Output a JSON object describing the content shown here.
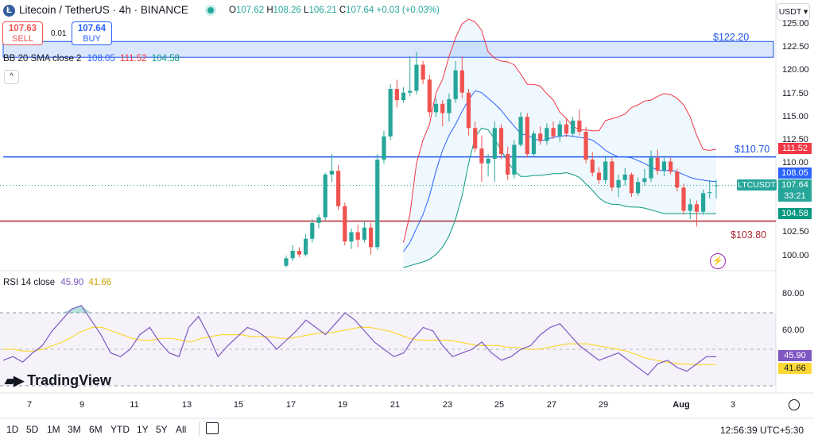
{
  "header": {
    "logo_letter": "Ł",
    "title": "Litecoin / TetherUS · 4h · BINANCE",
    "ohlc": {
      "open_key": "O",
      "open": "107.62",
      "high_key": "H",
      "high": "108.26",
      "low_key": "L",
      "low": "106.21",
      "close_key": "C",
      "close": "107.64",
      "change": "+0.03 (+0.03%)"
    },
    "currency_button": "USDT ▾"
  },
  "trade": {
    "sell_price": "107.63",
    "sell_label": "SELL",
    "spread": "0.01",
    "buy_price": "107.64",
    "buy_label": "BUY"
  },
  "indicators": {
    "bb": {
      "name": "BB 20 SMA close 2",
      "basis": "108.05",
      "upper": "111.52",
      "lower": "104.58"
    },
    "rsi": {
      "name": "RSI 14 close",
      "value": "45.90",
      "ma": "41.66"
    },
    "collapse_icon": "^"
  },
  "price_axis": {
    "ticks": [
      "125.00",
      "122.50",
      "120.00",
      "117.50",
      "115.00",
      "112.50",
      "110.00",
      "107.50",
      "105.00",
      "102.50",
      "100.00"
    ],
    "rsi_ticks": [
      "80.00",
      "60.00"
    ]
  },
  "badges": {
    "upper": "111.52",
    "basis": "108.05",
    "symbol_label": "LTCUSDT",
    "price": "107.64",
    "countdown": "33:21",
    "lower": "104.58",
    "rsi": "45.90",
    "rsi_ma": "41.66"
  },
  "levels": {
    "zone_top": "$122.20",
    "resistance": "$110.70",
    "support": "$103.80"
  },
  "time_axis": {
    "ticks": [
      "7",
      "9",
      "11",
      "13",
      "15",
      "17",
      "19",
      "21",
      "23",
      "25",
      "27",
      "29",
      "Aug",
      "3"
    ]
  },
  "timeframes": [
    "1D",
    "5D",
    "1M",
    "3M",
    "6M",
    "YTD",
    "1Y",
    "5Y",
    "All"
  ],
  "footer": {
    "clock": "12:56:39 UTC+5:30",
    "brand": "TradingView"
  },
  "colors": {
    "up": "#26a69a",
    "down": "#ef5350",
    "bb_basis": "#2962ff",
    "bb_upper": "#f23645",
    "bb_lower": "#089981",
    "rsi": "#7e57c2",
    "rsi_ma": "#fdd835",
    "resistance": "#1e53e5",
    "support": "#b22833"
  },
  "chart_data": {
    "type": "candlestick",
    "symbol": "LTCUSDT",
    "interval": "4h",
    "ylim": [
      98.5,
      126
    ],
    "candles": [
      {
        "o": 99.0,
        "h": 100.1,
        "l": 98.8,
        "c": 99.8
      },
      {
        "o": 99.8,
        "h": 101.2,
        "l": 99.5,
        "c": 100.6
      },
      {
        "o": 100.6,
        "h": 101.0,
        "l": 99.9,
        "c": 100.2
      },
      {
        "o": 100.2,
        "h": 102.4,
        "l": 100.0,
        "c": 101.9
      },
      {
        "o": 101.9,
        "h": 104.0,
        "l": 101.5,
        "c": 103.6
      },
      {
        "o": 103.6,
        "h": 104.5,
        "l": 103.0,
        "c": 104.2
      },
      {
        "o": 104.2,
        "h": 109.0,
        "l": 103.9,
        "c": 108.8
      },
      {
        "o": 108.8,
        "h": 111.0,
        "l": 108.0,
        "c": 109.2
      },
      {
        "o": 109.2,
        "h": 109.8,
        "l": 105.0,
        "c": 105.4
      },
      {
        "o": 105.4,
        "h": 105.8,
        "l": 101.2,
        "c": 101.6
      },
      {
        "o": 101.6,
        "h": 103.0,
        "l": 100.8,
        "c": 102.6
      },
      {
        "o": 102.6,
        "h": 103.4,
        "l": 101.0,
        "c": 101.8
      },
      {
        "o": 101.8,
        "h": 103.8,
        "l": 101.5,
        "c": 103.1
      },
      {
        "o": 103.1,
        "h": 103.6,
        "l": 100.2,
        "c": 101.0
      },
      {
        "o": 101.0,
        "h": 111.0,
        "l": 100.7,
        "c": 110.4
      },
      {
        "o": 110.4,
        "h": 113.5,
        "l": 110.0,
        "c": 112.9
      },
      {
        "o": 112.9,
        "h": 118.5,
        "l": 112.5,
        "c": 118.0
      },
      {
        "o": 118.0,
        "h": 119.0,
        "l": 116.0,
        "c": 116.8
      },
      {
        "o": 116.8,
        "h": 118.2,
        "l": 116.5,
        "c": 117.6
      },
      {
        "o": 117.6,
        "h": 121.5,
        "l": 117.2,
        "c": 117.8
      },
      {
        "o": 117.8,
        "h": 122.0,
        "l": 117.4,
        "c": 120.6
      },
      {
        "o": 120.6,
        "h": 121.0,
        "l": 118.5,
        "c": 119.0
      },
      {
        "o": 119.0,
        "h": 119.5,
        "l": 115.0,
        "c": 115.5
      },
      {
        "o": 115.5,
        "h": 117.0,
        "l": 115.0,
        "c": 116.4
      },
      {
        "o": 116.4,
        "h": 116.8,
        "l": 114.0,
        "c": 115.4
      },
      {
        "o": 115.4,
        "h": 117.5,
        "l": 114.5,
        "c": 116.9
      },
      {
        "o": 116.9,
        "h": 121.0,
        "l": 116.5,
        "c": 120.0
      },
      {
        "o": 120.0,
        "h": 121.5,
        "l": 117.0,
        "c": 117.6
      },
      {
        "o": 117.6,
        "h": 118.0,
        "l": 113.0,
        "c": 113.8
      },
      {
        "o": 113.8,
        "h": 114.5,
        "l": 111.2,
        "c": 111.6
      },
      {
        "o": 111.6,
        "h": 113.0,
        "l": 108.0,
        "c": 110.0
      },
      {
        "o": 110.0,
        "h": 111.0,
        "l": 108.6,
        "c": 110.5
      },
      {
        "o": 110.5,
        "h": 114.5,
        "l": 108.0,
        "c": 113.8
      },
      {
        "o": 113.8,
        "h": 114.2,
        "l": 110.5,
        "c": 111.0
      },
      {
        "o": 111.0,
        "h": 111.8,
        "l": 108.2,
        "c": 108.8
      },
      {
        "o": 108.8,
        "h": 112.5,
        "l": 108.4,
        "c": 112.0
      },
      {
        "o": 112.0,
        "h": 115.5,
        "l": 111.8,
        "c": 115.0
      },
      {
        "o": 115.0,
        "h": 115.4,
        "l": 110.6,
        "c": 111.0
      },
      {
        "o": 111.0,
        "h": 113.5,
        "l": 110.8,
        "c": 113.2
      },
      {
        "o": 113.2,
        "h": 114.0,
        "l": 112.0,
        "c": 112.4
      },
      {
        "o": 112.4,
        "h": 114.3,
        "l": 112.0,
        "c": 113.8
      },
      {
        "o": 113.8,
        "h": 114.5,
        "l": 112.6,
        "c": 112.9
      },
      {
        "o": 112.9,
        "h": 114.6,
        "l": 112.3,
        "c": 114.2
      },
      {
        "o": 114.2,
        "h": 114.8,
        "l": 112.8,
        "c": 113.2
      },
      {
        "o": 113.2,
        "h": 115.0,
        "l": 112.9,
        "c": 114.6
      },
      {
        "o": 114.6,
        "h": 115.8,
        "l": 113.0,
        "c": 113.4
      },
      {
        "o": 113.4,
        "h": 113.9,
        "l": 110.0,
        "c": 110.4
      },
      {
        "o": 110.4,
        "h": 111.2,
        "l": 108.6,
        "c": 109.0
      },
      {
        "o": 109.0,
        "h": 109.6,
        "l": 107.8,
        "c": 108.2
      },
      {
        "o": 108.2,
        "h": 110.8,
        "l": 107.8,
        "c": 110.2
      },
      {
        "o": 110.2,
        "h": 110.6,
        "l": 107.0,
        "c": 107.4
      },
      {
        "o": 107.4,
        "h": 108.8,
        "l": 106.4,
        "c": 108.2
      },
      {
        "o": 108.2,
        "h": 109.5,
        "l": 107.6,
        "c": 108.8
      },
      {
        "o": 108.8,
        "h": 109.0,
        "l": 106.4,
        "c": 106.8
      },
      {
        "o": 106.8,
        "h": 108.5,
        "l": 106.5,
        "c": 108.0
      },
      {
        "o": 108.0,
        "h": 109.4,
        "l": 107.6,
        "c": 108.4
      },
      {
        "o": 108.4,
        "h": 111.4,
        "l": 108.0,
        "c": 110.6
      },
      {
        "o": 110.6,
        "h": 111.5,
        "l": 108.8,
        "c": 109.2
      },
      {
        "o": 109.2,
        "h": 110.8,
        "l": 108.6,
        "c": 110.2
      },
      {
        "o": 110.2,
        "h": 110.6,
        "l": 108.8,
        "c": 109.1
      },
      {
        "o": 109.1,
        "h": 109.4,
        "l": 107.0,
        "c": 107.4
      },
      {
        "o": 107.4,
        "h": 107.8,
        "l": 104.5,
        "c": 104.9
      },
      {
        "o": 104.9,
        "h": 106.2,
        "l": 104.0,
        "c": 105.6
      },
      {
        "o": 105.6,
        "h": 106.0,
        "l": 103.2,
        "c": 104.8
      },
      {
        "o": 104.8,
        "h": 107.2,
        "l": 104.5,
        "c": 106.8
      },
      {
        "o": 106.8,
        "h": 108.2,
        "l": 106.2,
        "c": 106.9
      },
      {
        "o": 107.62,
        "h": 108.26,
        "l": 106.21,
        "c": 107.64
      }
    ],
    "bb": {
      "upper": [
        101.5,
        104.5,
        110.0,
        112.5,
        114.2,
        117.6,
        119.0,
        121.5,
        123.5,
        125.0,
        125.5,
        125.2,
        124.3,
        122.0,
        121.3,
        121.0,
        120.9,
        120.6,
        119.6,
        118.5,
        118.5,
        118.3,
        117.5,
        116.8,
        115.5,
        114.8,
        114.0,
        113.6,
        113.6,
        113.5,
        113.5,
        114.6,
        114.8,
        115.0,
        115.3,
        116.0,
        116.3,
        116.7,
        116.8,
        117.2,
        117.5,
        117.4,
        117.0,
        116.3,
        115.0,
        113.0,
        111.5,
        111.4,
        111.52
      ],
      "basis": [
        100.5,
        101.5,
        103.0,
        104.5,
        106.5,
        109.2,
        111.4,
        113.0,
        114.2,
        115.6,
        116.8,
        117.8,
        117.6,
        117.0,
        116.4,
        115.7,
        114.8,
        114.0,
        113.2,
        113.0,
        112.7,
        112.4,
        112.6,
        112.8,
        112.9,
        113.0,
        112.9,
        112.8,
        112.7,
        112.5,
        112.0,
        111.4,
        111.0,
        110.7,
        110.7,
        110.6,
        110.3,
        110.0,
        109.6,
        109.3,
        109.2,
        109.3,
        109.1,
        108.8,
        108.5,
        108.3,
        108.2,
        108.1,
        108.05
      ],
      "lower": [
        98.8,
        99.0,
        99.2,
        99.4,
        99.7,
        100.2,
        101.0,
        102.2,
        104.0,
        106.5,
        110.0,
        112.8,
        113.8,
        113.6,
        112.6,
        111.4,
        110.2,
        109.2,
        108.6,
        108.6,
        108.7,
        108.7,
        108.8,
        108.9,
        108.9,
        109.0,
        108.8,
        108.5,
        107.8,
        107.1,
        106.3,
        105.8,
        105.6,
        105.6,
        105.4,
        105.3,
        105.3,
        105.2,
        105.0,
        104.8,
        104.6,
        104.6,
        104.6,
        104.6,
        104.6,
        104.6,
        104.6,
        104.6,
        104.58
      ]
    },
    "rsi": [
      44,
      46,
      43,
      48,
      52,
      60,
      66,
      72,
      74,
      66,
      58,
      48,
      46,
      50,
      58,
      62,
      54,
      48,
      46,
      62,
      68,
      58,
      46,
      52,
      57,
      62,
      60,
      56,
      50,
      55,
      60,
      66,
      62,
      58,
      64,
      70,
      66,
      60,
      54,
      50,
      46,
      48,
      56,
      62,
      60,
      52,
      46,
      48,
      50,
      54,
      48,
      44,
      46,
      50,
      52,
      58,
      62,
      64,
      58,
      52,
      48,
      44,
      46,
      48,
      44,
      40,
      36,
      42,
      44,
      40,
      38,
      42,
      46,
      45.9
    ],
    "rsi_ma": [
      50,
      50,
      49,
      49,
      50,
      52,
      54,
      57,
      60,
      62,
      62,
      60,
      58,
      56,
      55,
      55,
      56,
      56,
      55,
      54,
      56,
      57,
      58,
      58,
      58,
      57,
      57,
      57,
      56,
      56,
      57,
      58,
      59,
      59,
      60,
      61,
      62,
      62,
      61,
      60,
      58,
      56,
      55,
      55,
      55,
      55,
      54,
      53,
      52,
      52,
      52,
      51,
      51,
      50,
      50,
      51,
      52,
      53,
      53,
      53,
      52,
      51,
      50,
      49,
      47,
      45,
      44,
      43,
      42,
      42,
      41.5,
      41.6,
      41.66
    ],
    "rsi_bands": [
      70,
      50,
      30
    ]
  }
}
